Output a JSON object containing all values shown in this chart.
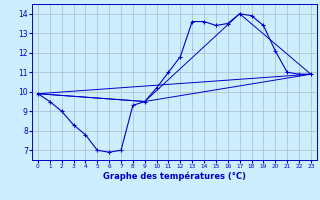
{
  "background_color": "#cceeff",
  "grid_color": "#aabbcc",
  "line_color": "#0000cc",
  "title": "Graphe des températures (°C)",
  "xlim": [
    -0.5,
    23.5
  ],
  "ylim": [
    6.5,
    14.5
  ],
  "yticks": [
    7,
    8,
    9,
    10,
    11,
    12,
    13,
    14
  ],
  "xticks": [
    0,
    1,
    2,
    3,
    4,
    5,
    6,
    7,
    8,
    9,
    10,
    11,
    12,
    13,
    14,
    15,
    16,
    17,
    18,
    19,
    20,
    21,
    22,
    23
  ],
  "line1_x": [
    0,
    1,
    2,
    3,
    4,
    5,
    6,
    7,
    8,
    9,
    10,
    11,
    12,
    13,
    14,
    15,
    16,
    17,
    18,
    19,
    20,
    21,
    22,
    23
  ],
  "line1_y": [
    9.9,
    9.5,
    9.0,
    8.3,
    7.8,
    7.0,
    6.9,
    7.0,
    9.3,
    9.5,
    10.2,
    11.0,
    11.8,
    13.6,
    13.6,
    13.4,
    13.5,
    14.0,
    13.9,
    13.4,
    12.1,
    11.0,
    10.9,
    10.9
  ],
  "line2_x": [
    0,
    23
  ],
  "line2_y": [
    9.9,
    10.9
  ],
  "line3_x": [
    0,
    9,
    23
  ],
  "line3_y": [
    9.9,
    9.5,
    10.9
  ],
  "line4_x": [
    0,
    9,
    17,
    23
  ],
  "line4_y": [
    9.9,
    9.5,
    14.0,
    10.9
  ]
}
